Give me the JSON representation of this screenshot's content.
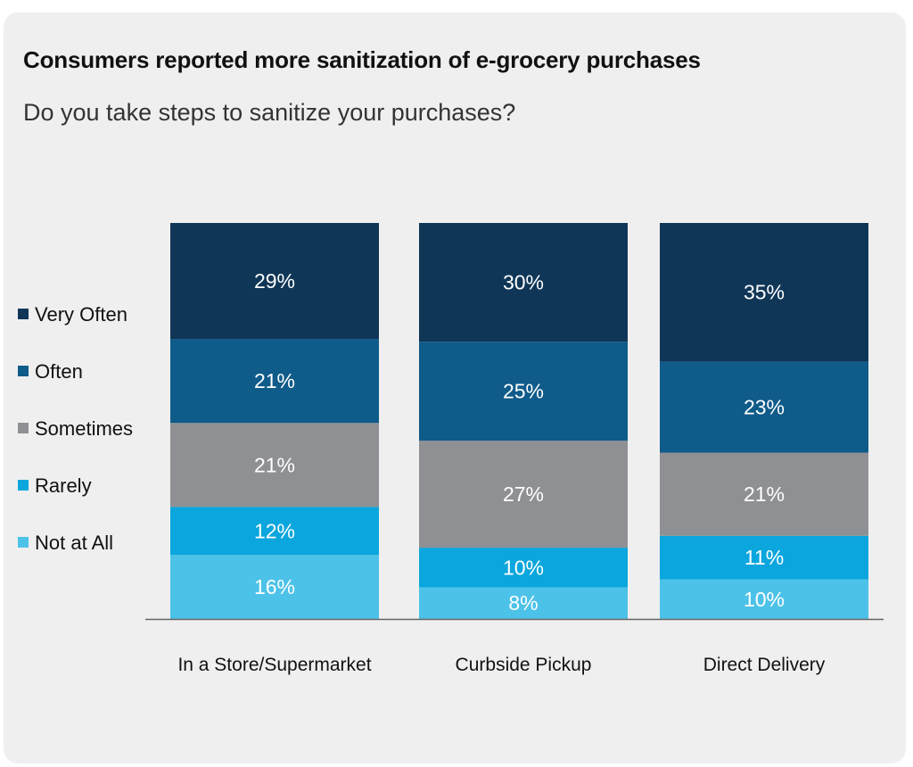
{
  "title": "Consumers reported more sanitization of e-grocery purchases",
  "subtitle": "Do you take steps to sanitize your purchases?",
  "colors": {
    "background": "#efefef",
    "very_often": "#0f3657",
    "often": "#0f5b89",
    "sometimes": "#8f9093",
    "rarely": "#0aa6dd",
    "not_at_all": "#4dc2e8",
    "label_text": "#ffffff",
    "axis": "#666666"
  },
  "chart_data": {
    "type": "bar",
    "stacked": true,
    "normalized": true,
    "title": "Consumers reported more sanitization of e-grocery purchases",
    "subtitle": "Do you take steps to sanitize your purchases?",
    "categories": [
      "In a Store/Supermarket",
      "Curbside Pickup",
      "Direct Delivery"
    ],
    "series": [
      {
        "name": "Not at All",
        "values": [
          16,
          8,
          10
        ],
        "labels": [
          "16%",
          "8%",
          "10%"
        ],
        "color": "#4dc2e8"
      },
      {
        "name": "Rarely",
        "values": [
          12,
          10,
          11
        ],
        "labels": [
          "12%",
          "10%",
          "11%"
        ],
        "color": "#0aa6dd"
      },
      {
        "name": "Sometimes",
        "values": [
          21,
          27,
          21
        ],
        "labels": [
          "21%",
          "27%",
          "21%"
        ],
        "color": "#8f9093"
      },
      {
        "name": "Often",
        "values": [
          21,
          25,
          23
        ],
        "labels": [
          "21%",
          "25%",
          "23%"
        ],
        "color": "#0f5b89"
      },
      {
        "name": "Very Often",
        "values": [
          29,
          30,
          35
        ],
        "labels": [
          "29%",
          "30%",
          "35%"
        ],
        "color": "#0f3657"
      }
    ],
    "legend": {
      "position": "left",
      "order": [
        "Very Often",
        "Often",
        "Sometimes",
        "Rarely",
        "Not at All"
      ]
    },
    "xlabel": "",
    "ylabel": "",
    "grid": false
  }
}
